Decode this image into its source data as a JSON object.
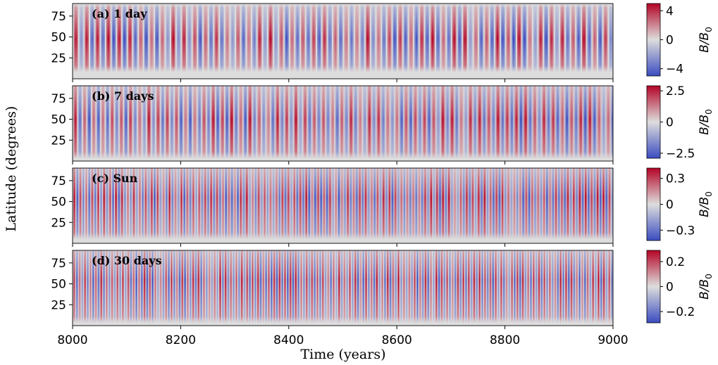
{
  "figure": {
    "ylabel": "Latitude (degrees)",
    "xlabel": "Time (years)",
    "colormap": "coolwarm",
    "colors": {
      "negative": "#3b4cc0",
      "neutral": "#dddddd",
      "positive": "#b40426"
    }
  },
  "chart_data": [
    {
      "type": "heatmap",
      "panel_label": "(a) 1 day",
      "xlim": [
        8000,
        9000
      ],
      "ylim": [
        0,
        90
      ],
      "y_ticks": [
        25,
        50,
        75
      ],
      "x_ticks": [
        8000,
        8200,
        8400,
        8600,
        8800,
        9000
      ],
      "x_tick_labels_visible": false,
      "period_years": 20,
      "latitude_band": [
        8,
        85
      ],
      "latitude_peak": 48,
      "colorbar": {
        "label": "B/B0",
        "ticks": [
          -4,
          0,
          4
        ],
        "range": [
          -5,
          5
        ]
      }
    },
    {
      "type": "heatmap",
      "panel_label": "(b) 7 days",
      "xlim": [
        8000,
        9000
      ],
      "ylim": [
        0,
        90
      ],
      "y_ticks": [
        25,
        50,
        75
      ],
      "x_ticks": [
        8000,
        8200,
        8400,
        8600,
        8800,
        9000
      ],
      "x_tick_labels_visible": false,
      "period_years": 17,
      "latitude_band": [
        3,
        90
      ],
      "latitude_peak": 50,
      "colorbar": {
        "label": "B/B0",
        "ticks": [
          -2.5,
          0.0,
          2.5
        ],
        "range": [
          -2.9,
          2.9
        ]
      }
    },
    {
      "type": "heatmap",
      "panel_label": "(c) Sun",
      "xlim": [
        8000,
        9000
      ],
      "ylim": [
        0,
        90
      ],
      "y_ticks": [
        25,
        50,
        75
      ],
      "x_ticks": [
        8000,
        8200,
        8400,
        8600,
        8800,
        9000
      ],
      "x_tick_labels_visible": false,
      "period_years": 11,
      "latitude_band": [
        5,
        90
      ],
      "latitude_peak": 55,
      "colorbar": {
        "label": "B/B0",
        "ticks": [
          -0.3,
          0.0,
          0.3
        ],
        "range": [
          -0.42,
          0.42
        ]
      }
    },
    {
      "type": "heatmap",
      "panel_label": "(d) 30 days",
      "xlim": [
        8000,
        9000
      ],
      "ylim": [
        0,
        90
      ],
      "y_ticks": [
        25,
        50,
        75
      ],
      "x_ticks": [
        8000,
        8200,
        8400,
        8600,
        8800,
        9000
      ],
      "x_tick_labels_visible": true,
      "period_years": 10,
      "latitude_band": [
        3,
        90
      ],
      "latitude_peak": 55,
      "colorbar": {
        "label": "B/B0",
        "ticks": [
          -0.2,
          0.0,
          0.2
        ],
        "range": [
          -0.29,
          0.29
        ]
      }
    }
  ]
}
